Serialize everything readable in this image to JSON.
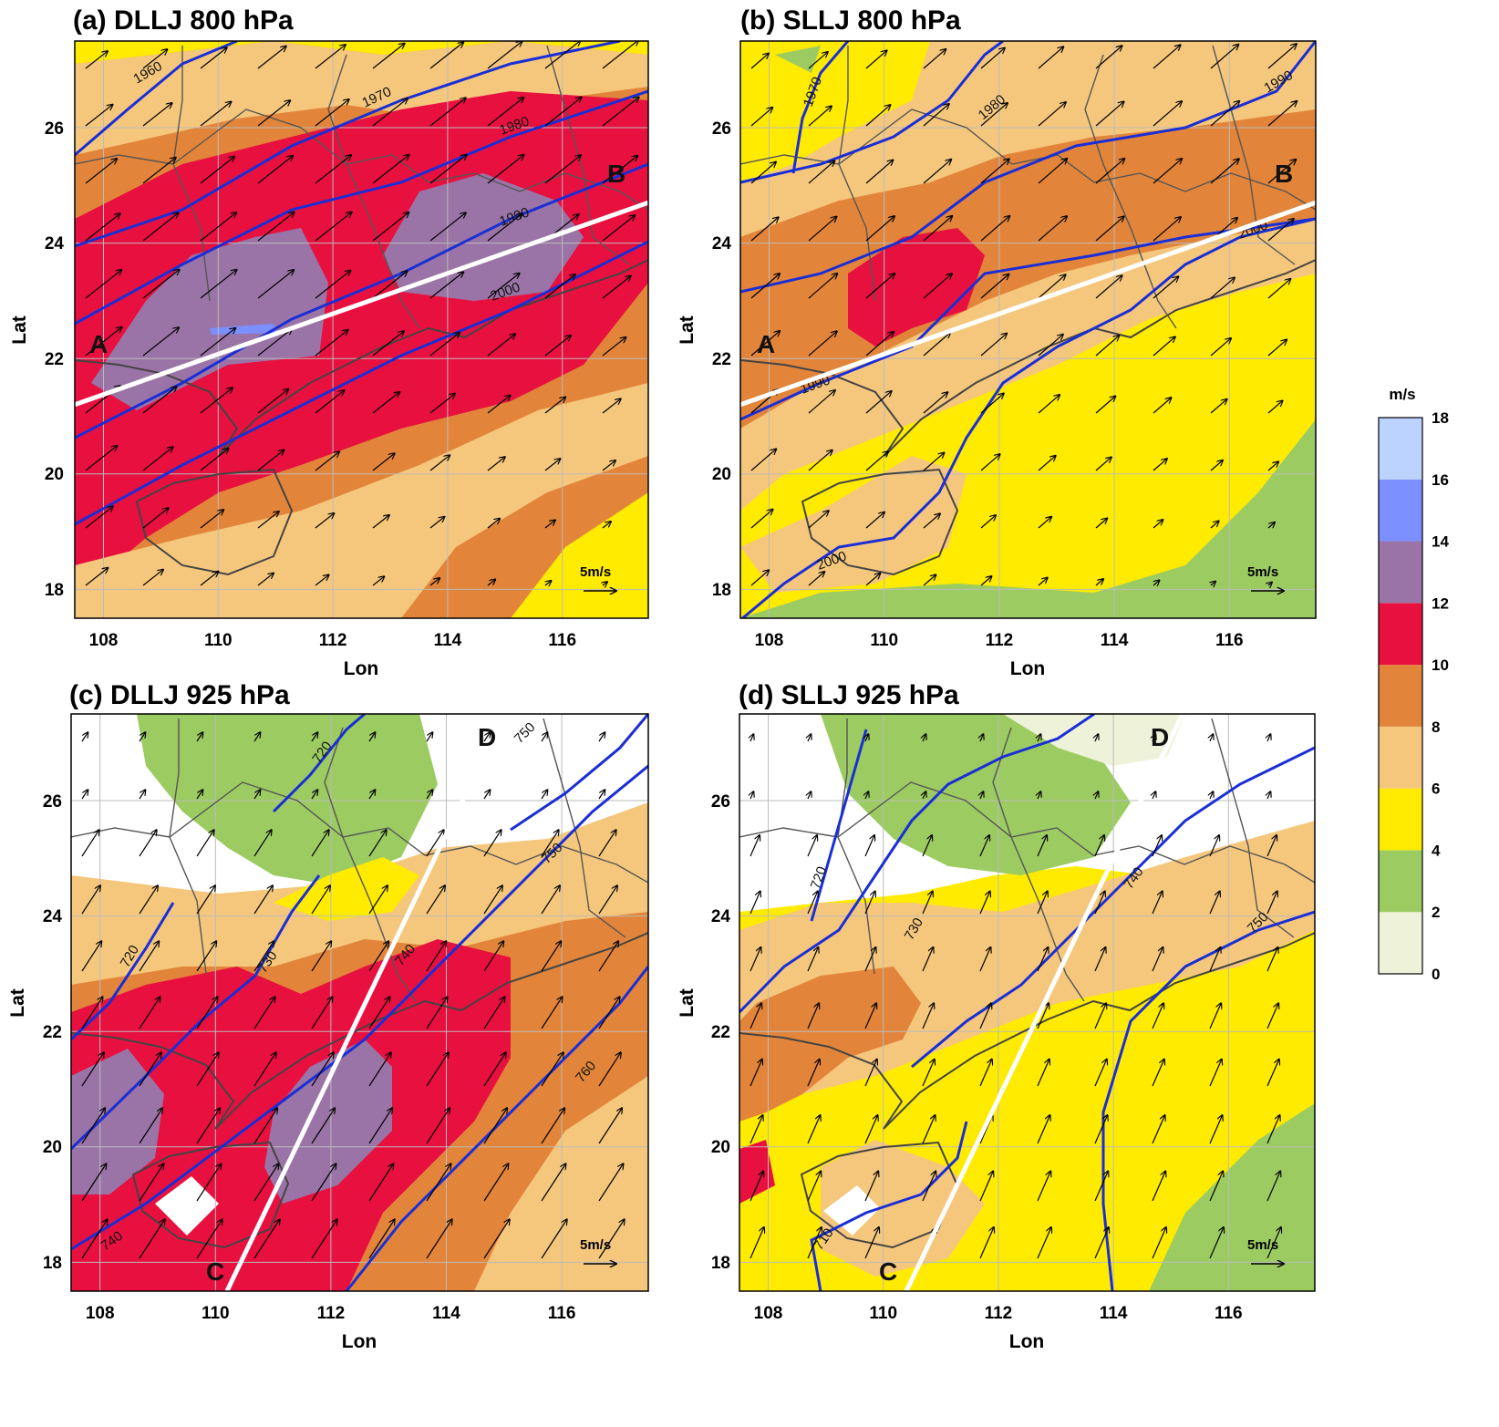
{
  "figure": {
    "axis_labels": {
      "x": "Lon",
      "y": "Lat"
    },
    "x_ticks": [
      "108",
      "110",
      "112",
      "114",
      "116"
    ],
    "y_ticks": [
      "18",
      "20",
      "22",
      "24",
      "26"
    ],
    "lon_range": [
      107.5,
      117.5
    ],
    "lat_range": [
      17.5,
      27.5
    ],
    "reference_vector_label": "5m/s",
    "colorbar": {
      "unit": "m/s",
      "ticks": [
        "0",
        "2",
        "4",
        "6",
        "8",
        "10",
        "12",
        "14",
        "16",
        "18"
      ],
      "colors": [
        "#eef2d9",
        "#9ccb62",
        "#ffeb00",
        "#f5c77d",
        "#e2853a",
        "#e8103f",
        "#9a74a6",
        "#7b8fff",
        "#bcd2ff"
      ],
      "line_color": "#1a2ed6"
    },
    "panels": [
      {
        "id": "a",
        "title": "(a) DLLJ 800 hPa",
        "cross_section": {
          "start_label": "A",
          "end_label": "B",
          "start": [
            107.5,
            21.2
          ],
          "end": [
            117.5,
            24.7
          ]
        },
        "contour_labels": [
          "1960",
          "1970",
          "1980",
          "1990",
          "2000"
        ]
      },
      {
        "id": "b",
        "title": "(b) SLLJ 800 hPa",
        "cross_section": {
          "start_label": "A",
          "end_label": "B",
          "start": [
            107.5,
            21.2
          ],
          "end": [
            117.5,
            24.7
          ]
        },
        "contour_labels": [
          "1970",
          "1980",
          "1990",
          "1990",
          "2000",
          "2000"
        ]
      },
      {
        "id": "c",
        "title": "(c) DLLJ 925 hPa",
        "cross_section": {
          "start_label": "C",
          "end_label": "D",
          "start": [
            110.2,
            17.5
          ],
          "end": [
            115.0,
            27.5
          ]
        },
        "contour_labels": [
          "720",
          "720",
          "730",
          "740",
          "750",
          "750",
          "760",
          "740"
        ]
      },
      {
        "id": "d",
        "title": "(d) SLLJ 925 hPa",
        "cross_section": {
          "start_label": "C",
          "end_label": "D",
          "start": [
            110.4,
            17.5
          ],
          "end": [
            115.2,
            27.5
          ]
        },
        "contour_labels": [
          "720",
          "730",
          "740",
          "750",
          "710"
        ]
      }
    ]
  }
}
